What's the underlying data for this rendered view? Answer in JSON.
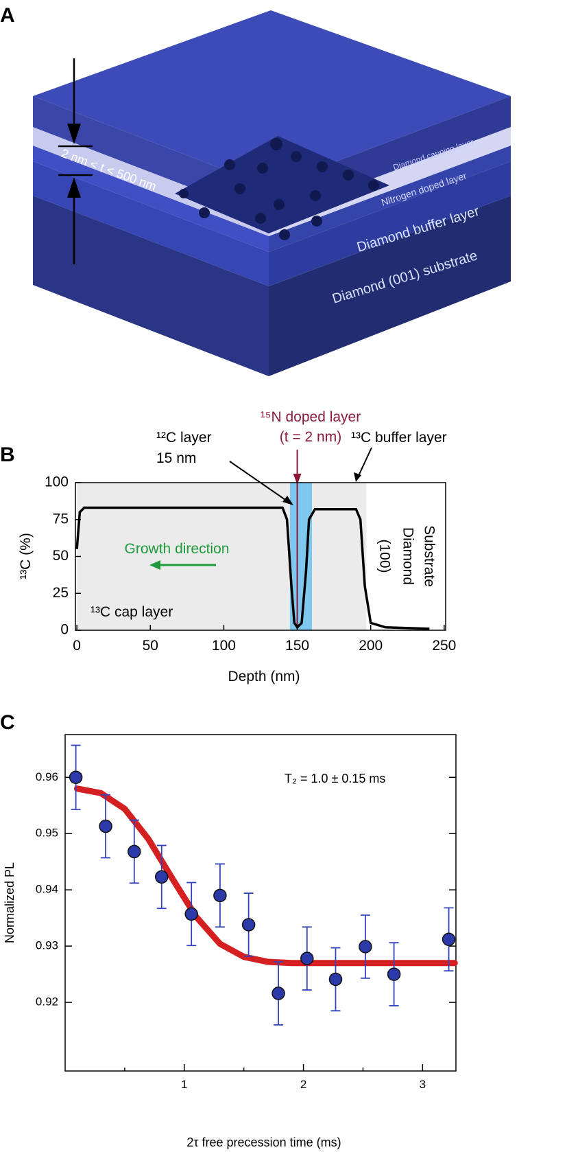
{
  "diagram": {
    "label": "A",
    "layers": [
      "Diamond capping layer",
      "Nitrogen doped layer",
      "Diamond buffer layer",
      "Diamond (001) substrate"
    ],
    "thickness": "2 nm < t < 500 nm"
  },
  "chart_data": [
    {
      "type": "line",
      "label": "B",
      "xlabel": "Depth (nm)",
      "ylabel": "¹³C (%)",
      "x": [
        0,
        2,
        5,
        140,
        143,
        146,
        148,
        150,
        153,
        156,
        158,
        162,
        190,
        193,
        196,
        200,
        210,
        240
      ],
      "values": [
        55,
        80,
        83,
        83,
        75,
        30,
        5,
        2,
        5,
        40,
        75,
        82,
        82,
        75,
        30,
        5,
        2,
        1
      ],
      "color": "#000000",
      "xlim": [
        -1,
        251
      ],
      "ylim": [
        0,
        100
      ],
      "xticks": [
        0,
        50,
        100,
        150,
        200,
        250
      ],
      "yticks": [
        0,
        25,
        50,
        75,
        100
      ],
      "gray_span": [
        0,
        197
      ],
      "blue_span": [
        145,
        160
      ],
      "doped_line": 150,
      "annotations": [
        "¹⁵N doped layer",
        "(t = 2 nm)",
        "¹²C layer",
        "15 nm",
        "¹³C buffer layer",
        "Growth direction",
        "¹³C cap layer",
        "(100)",
        "Diamond",
        "Substrate"
      ]
    },
    {
      "type": "scatter",
      "label": "C",
      "xlabel": "2τ free precession time (ms)",
      "ylabel": "Normalized PL",
      "annotation": "T₂ = 1.0 ± 0.15 ms",
      "x": [
        0.09,
        0.34,
        0.58,
        0.81,
        1.06,
        1.3,
        1.54,
        1.79,
        2.03,
        2.27,
        2.52,
        2.76,
        3.22
      ],
      "values": [
        0.96,
        0.9513,
        0.9468,
        0.9423,
        0.9357,
        0.939,
        0.9338,
        0.9216,
        0.9278,
        0.9241,
        0.9299,
        0.925,
        0.9312
      ],
      "errors": [
        0.0057,
        0.0056,
        0.0056,
        0.0056,
        0.0056,
        0.0056,
        0.0056,
        0.0056,
        0.0056,
        0.0056,
        0.0056,
        0.0056,
        0.0056
      ],
      "color": "#2b3aa8",
      "error_color": "#3344bb",
      "fit": {
        "x": [
          0.1,
          0.3,
          0.5,
          0.7,
          0.9,
          1.1,
          1.3,
          1.5,
          1.7,
          1.9,
          2.1,
          2.5,
          3.0,
          3.27
        ],
        "values": [
          0.958,
          0.9572,
          0.9544,
          0.949,
          0.942,
          0.9352,
          0.9304,
          0.9281,
          0.9272,
          0.927,
          0.927,
          0.927,
          0.927,
          0.927
        ],
        "color": "#d42020"
      },
      "xlim": [
        0,
        3.28
      ],
      "ylim": [
        0.9078,
        0.9676
      ],
      "xticks": [
        1,
        2,
        3
      ],
      "xminor_ticks": [
        0.5,
        1.5,
        2.5
      ],
      "yticks": [
        0.92,
        0.93,
        0.94,
        0.95,
        0.96
      ]
    }
  ]
}
